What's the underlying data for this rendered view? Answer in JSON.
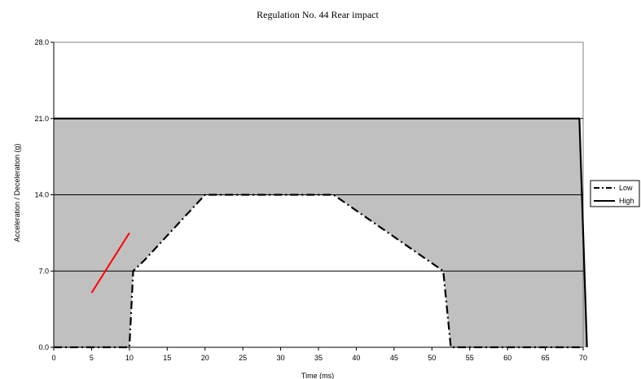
{
  "chart_data": {
    "type": "area",
    "title": "Regulation No. 44 Rear impact",
    "xlabel": "Time (ms)",
    "ylabel": "Acceleration / Deceleration (g)",
    "xlim": [
      0,
      70
    ],
    "ylim": [
      0,
      28
    ],
    "x_ticks": [
      "0",
      "5",
      "10",
      "15",
      "20",
      "25",
      "30",
      "35",
      "40",
      "45",
      "50",
      "55",
      "60",
      "65",
      "70"
    ],
    "y_ticks": [
      "0.0",
      "7.0",
      "14.0",
      "21.0",
      "28.0"
    ],
    "grid": "horizontal",
    "legend_position": "right",
    "colors": {
      "corridor_fill": "#c0c0c0",
      "plot_background": "#ffffff",
      "low": "#000000",
      "high": "#000000",
      "annotation": "#ff0000"
    },
    "series": [
      {
        "name": "Low",
        "style": "dash-dot",
        "points": [
          [
            0,
            0
          ],
          [
            10,
            0
          ],
          [
            10.5,
            7
          ],
          [
            12,
            8
          ],
          [
            20,
            14
          ],
          [
            37,
            14
          ],
          [
            51.5,
            7
          ],
          [
            52.5,
            0
          ],
          [
            70,
            0
          ]
        ]
      },
      {
        "name": "High",
        "style": "solid",
        "points": [
          [
            0,
            21
          ],
          [
            69.5,
            21
          ],
          [
            70.5,
            0
          ]
        ]
      }
    ],
    "annotation_line": {
      "points": [
        [
          5,
          5
        ],
        [
          10,
          10.5
        ]
      ]
    }
  }
}
